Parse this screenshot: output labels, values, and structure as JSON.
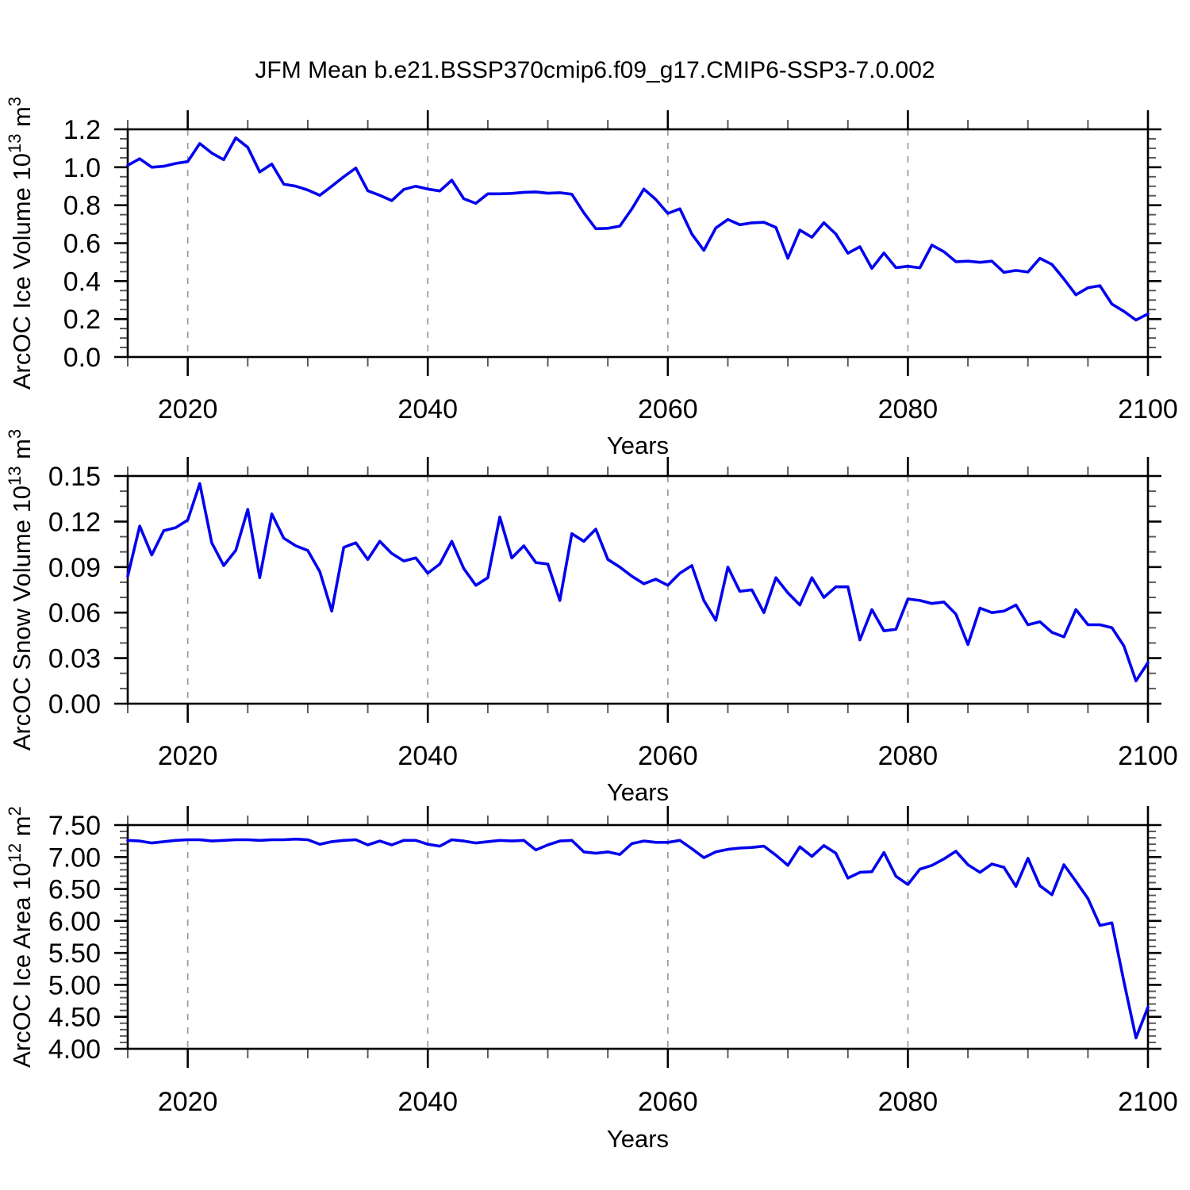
{
  "title": "JFM Mean b.e21.BSSP370cmip6.f09_g17.CMIP6-SSP3-7.0.002",
  "colors": {
    "line": "#0202ee",
    "frame": "#000000",
    "minor_tick": "#555555",
    "gridline": "#999999",
    "text": "#000000"
  },
  "chart_data": {
    "type": "line",
    "x_label": "Years",
    "x_start": 2015,
    "x_end": 2100,
    "x_step": 1,
    "x_major_ticks": [
      2020,
      2040,
      2060,
      2080,
      2100
    ],
    "x_major_tick_labels": [
      "2020",
      "2040",
      "2060",
      "2080",
      "2100"
    ],
    "x_minor_step": 5,
    "grid_years": [
      2020,
      2040,
      2060,
      2080
    ],
    "grid_style": "dashed",
    "legend": "none",
    "panels": [
      {
        "name": "ice-volume",
        "y_label": "ArcOC Ice Volume 10^13 m^3",
        "ylim": [
          0.0,
          1.2
        ],
        "y_major_ticks": [
          0.0,
          0.2,
          0.4,
          0.6,
          0.8,
          1.0,
          1.2
        ],
        "y_tick_labels": [
          "0.0",
          "0.2",
          "0.4",
          "0.6",
          "0.8",
          "1.0",
          "1.2"
        ],
        "y_minor_step": 0.05,
        "values": [
          1.01,
          1.045,
          1.0,
          1.005,
          1.02,
          1.03,
          1.125,
          1.075,
          1.04,
          1.155,
          1.105,
          0.975,
          1.017,
          0.911,
          0.9,
          0.88,
          0.852,
          0.9,
          0.95,
          0.996,
          0.876,
          0.852,
          0.824,
          0.883,
          0.9,
          0.885,
          0.875,
          0.932,
          0.834,
          0.81,
          0.86,
          0.86,
          0.862,
          0.868,
          0.87,
          0.863,
          0.866,
          0.858,
          0.76,
          0.676,
          0.678,
          0.69,
          0.78,
          0.885,
          0.83,
          0.757,
          0.781,
          0.648,
          0.562,
          0.68,
          0.725,
          0.697,
          0.707,
          0.71,
          0.683,
          0.52,
          0.669,
          0.631,
          0.708,
          0.648,
          0.547,
          0.581,
          0.467,
          0.548,
          0.471,
          0.478,
          0.47,
          0.59,
          0.555,
          0.502,
          0.505,
          0.499,
          0.505,
          0.446,
          0.456,
          0.448,
          0.52,
          0.488,
          0.411,
          0.328,
          0.365,
          0.376,
          0.279,
          0.241,
          0.195,
          0.227
        ]
      },
      {
        "name": "snow-volume",
        "y_label": "ArcOC Snow Volume 10^13 m^3",
        "ylim": [
          0.0,
          0.15
        ],
        "y_major_ticks": [
          0.0,
          0.03,
          0.06,
          0.09,
          0.12,
          0.15
        ],
        "y_tick_labels": [
          "0.00",
          "0.03",
          "0.06",
          "0.09",
          "0.12",
          "0.15"
        ],
        "y_minor_step": 0.01,
        "values": [
          0.084,
          0.117,
          0.098,
          0.114,
          0.116,
          0.121,
          0.145,
          0.106,
          0.091,
          0.101,
          0.128,
          0.083,
          0.125,
          0.109,
          0.104,
          0.101,
          0.087,
          0.061,
          0.103,
          0.106,
          0.095,
          0.107,
          0.099,
          0.094,
          0.096,
          0.086,
          0.092,
          0.107,
          0.089,
          0.078,
          0.083,
          0.123,
          0.096,
          0.104,
          0.093,
          0.092,
          0.068,
          0.112,
          0.107,
          0.115,
          0.095,
          0.09,
          0.084,
          0.079,
          0.082,
          0.078,
          0.086,
          0.091,
          0.068,
          0.055,
          0.09,
          0.074,
          0.075,
          0.06,
          0.083,
          0.073,
          0.065,
          0.083,
          0.07,
          0.077,
          0.077,
          0.042,
          0.062,
          0.048,
          0.049,
          0.069,
          0.068,
          0.066,
          0.067,
          0.059,
          0.039,
          0.063,
          0.06,
          0.061,
          0.065,
          0.052,
          0.054,
          0.047,
          0.044,
          0.062,
          0.052,
          0.052,
          0.05,
          0.038,
          0.015,
          0.027
        ]
      },
      {
        "name": "ice-area",
        "y_label": "ArcOC Ice Area 10^12 m^2",
        "ylim": [
          4.0,
          7.5
        ],
        "y_major_ticks": [
          4.0,
          4.5,
          5.0,
          5.5,
          6.0,
          6.5,
          7.0,
          7.5
        ],
        "y_tick_labels": [
          "4.00",
          "4.50",
          "5.00",
          "5.50",
          "6.00",
          "6.50",
          "7.00",
          "7.50"
        ],
        "y_minor_step": 0.1,
        "values": [
          7.26,
          7.25,
          7.22,
          7.24,
          7.26,
          7.27,
          7.27,
          7.25,
          7.26,
          7.27,
          7.27,
          7.26,
          7.27,
          7.27,
          7.28,
          7.27,
          7.2,
          7.24,
          7.26,
          7.27,
          7.19,
          7.25,
          7.19,
          7.26,
          7.26,
          7.2,
          7.17,
          7.27,
          7.25,
          7.22,
          7.24,
          7.26,
          7.25,
          7.26,
          7.11,
          7.19,
          7.25,
          7.26,
          7.08,
          7.06,
          7.08,
          7.04,
          7.21,
          7.25,
          7.23,
          7.23,
          7.26,
          7.13,
          6.99,
          7.08,
          7.12,
          7.14,
          7.15,
          7.17,
          7.03,
          6.87,
          7.16,
          7.01,
          7.18,
          7.06,
          6.67,
          6.76,
          6.77,
          7.07,
          6.7,
          6.57,
          6.81,
          6.87,
          6.97,
          7.09,
          6.88,
          6.76,
          6.89,
          6.84,
          6.54,
          6.98,
          6.55,
          6.41,
          6.88,
          6.62,
          6.35,
          5.93,
          5.97,
          5.05,
          4.17,
          4.65
        ]
      }
    ]
  }
}
